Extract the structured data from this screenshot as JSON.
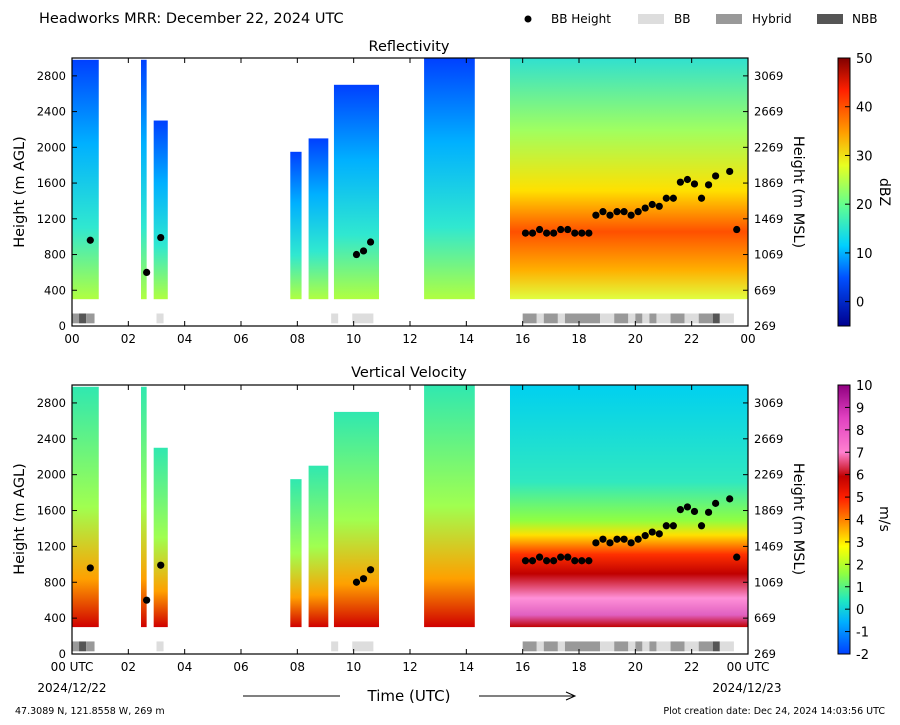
{
  "header": {
    "title": "Headworks MRR:  December 22, 2024 UTC",
    "legend": [
      {
        "label": "BB Height",
        "kind": "dot",
        "color": "#000000"
      },
      {
        "label": "BB",
        "kind": "patch",
        "color": "#dddddd"
      },
      {
        "label": "Hybrid",
        "kind": "patch",
        "color": "#999999"
      },
      {
        "label": "NBB",
        "kind": "patch",
        "color": "#555555"
      }
    ]
  },
  "footer": {
    "xlabel": "Time (UTC)",
    "location": "47.3089 N, 121.8558 W, 269 m",
    "creation": "Plot creation date: Dec 24, 2024 14:03:56 UTC",
    "start_date": "2024/12/22",
    "end_date": "2024/12/23"
  },
  "chart_data": [
    {
      "type": "heatmap",
      "title": "Reflectivity",
      "ylabel": "Height (m AGL)",
      "y2label": "Height (m MSL)",
      "xticks": [
        "00",
        "02",
        "04",
        "06",
        "08",
        "10",
        "12",
        "14",
        "16",
        "18",
        "20",
        "22",
        "00"
      ],
      "yticks": [
        "0",
        "400",
        "800",
        "1200",
        "1600",
        "2000",
        "2400",
        "2800"
      ],
      "y2ticks": [
        "269",
        "669",
        "1069",
        "1469",
        "1869",
        "2269",
        "2669",
        "3069"
      ],
      "xlim": [
        0,
        24
      ],
      "ylim": [
        0,
        3000
      ],
      "colorbar": {
        "label": "dBZ",
        "ticks": [
          "0",
          "10",
          "20",
          "30",
          "40",
          "50"
        ],
        "range": [
          -5,
          50
        ]
      },
      "bb_height_points": [
        [
          0.65,
          960
        ],
        [
          2.65,
          600
        ],
        [
          3.15,
          990
        ],
        [
          10.1,
          800
        ],
        [
          10.35,
          840
        ],
        [
          10.6,
          940
        ],
        [
          16.1,
          1040
        ],
        [
          16.35,
          1040
        ],
        [
          16.6,
          1080
        ],
        [
          16.85,
          1040
        ],
        [
          17.1,
          1040
        ],
        [
          17.35,
          1080
        ],
        [
          17.6,
          1080
        ],
        [
          17.85,
          1040
        ],
        [
          18.1,
          1040
        ],
        [
          18.35,
          1040
        ],
        [
          18.6,
          1240
        ],
        [
          18.85,
          1280
        ],
        [
          19.1,
          1240
        ],
        [
          19.35,
          1280
        ],
        [
          19.6,
          1280
        ],
        [
          19.85,
          1240
        ],
        [
          20.1,
          1280
        ],
        [
          20.35,
          1320
        ],
        [
          20.6,
          1360
        ],
        [
          20.85,
          1340
        ],
        [
          21.1,
          1430
        ],
        [
          21.35,
          1430
        ],
        [
          21.6,
          1610
        ],
        [
          21.85,
          1640
        ],
        [
          22.1,
          1590
        ],
        [
          22.35,
          1430
        ],
        [
          22.6,
          1580
        ],
        [
          22.85,
          1680
        ],
        [
          23.35,
          1730
        ],
        [
          23.6,
          1080
        ]
      ]
    },
    {
      "type": "heatmap",
      "title": "Vertical Velocity",
      "ylabel": "Height (m AGL)",
      "y2label": "Height (m MSL)",
      "xticks": [
        "00 UTC",
        "02",
        "04",
        "06",
        "08",
        "10",
        "12",
        "14",
        "16",
        "18",
        "20",
        "22",
        "00 UTC"
      ],
      "yticks": [
        "0",
        "400",
        "800",
        "1200",
        "1600",
        "2000",
        "2400",
        "2800"
      ],
      "y2ticks": [
        "269",
        "669",
        "1069",
        "1469",
        "1869",
        "2269",
        "2669",
        "3069"
      ],
      "xlim": [
        0,
        24
      ],
      "ylim": [
        0,
        3000
      ],
      "colorbar": {
        "label": "m/s",
        "ticks": [
          "-2",
          "-1",
          "0",
          "1",
          "2",
          "3",
          "4",
          "5",
          "6",
          "7",
          "8",
          "9",
          "10"
        ],
        "range": [
          -2,
          10
        ]
      },
      "bb_height_points": [
        [
          0.65,
          960
        ],
        [
          2.65,
          600
        ],
        [
          3.15,
          990
        ],
        [
          10.1,
          800
        ],
        [
          10.35,
          840
        ],
        [
          10.6,
          940
        ],
        [
          16.1,
          1040
        ],
        [
          16.35,
          1040
        ],
        [
          16.6,
          1080
        ],
        [
          16.85,
          1040
        ],
        [
          17.1,
          1040
        ],
        [
          17.35,
          1080
        ],
        [
          17.6,
          1080
        ],
        [
          17.85,
          1040
        ],
        [
          18.1,
          1040
        ],
        [
          18.35,
          1040
        ],
        [
          18.6,
          1240
        ],
        [
          18.85,
          1280
        ],
        [
          19.1,
          1240
        ],
        [
          19.35,
          1280
        ],
        [
          19.6,
          1280
        ],
        [
          19.85,
          1240
        ],
        [
          20.1,
          1280
        ],
        [
          20.35,
          1320
        ],
        [
          20.6,
          1360
        ],
        [
          20.85,
          1340
        ],
        [
          21.1,
          1430
        ],
        [
          21.35,
          1430
        ],
        [
          21.6,
          1610
        ],
        [
          21.85,
          1640
        ],
        [
          22.1,
          1590
        ],
        [
          22.35,
          1430
        ],
        [
          22.6,
          1580
        ],
        [
          22.85,
          1680
        ],
        [
          23.35,
          1730
        ],
        [
          23.6,
          1080
        ]
      ]
    }
  ],
  "bb_type_segments": [
    {
      "start": 0.0,
      "end": 0.25,
      "type": "Hybrid"
    },
    {
      "start": 0.25,
      "end": 0.5,
      "type": "NBB"
    },
    {
      "start": 0.5,
      "end": 0.8,
      "type": "Hybrid"
    },
    {
      "start": 3.0,
      "end": 3.25,
      "type": "BB"
    },
    {
      "start": 9.2,
      "end": 9.45,
      "type": "BB"
    },
    {
      "start": 9.95,
      "end": 10.7,
      "type": "BB"
    },
    {
      "start": 16.0,
      "end": 16.5,
      "type": "Hybrid"
    },
    {
      "start": 16.5,
      "end": 16.75,
      "type": "BB"
    },
    {
      "start": 16.75,
      "end": 17.25,
      "type": "Hybrid"
    },
    {
      "start": 17.25,
      "end": 17.5,
      "type": "BB"
    },
    {
      "start": 17.5,
      "end": 18.75,
      "type": "Hybrid"
    },
    {
      "start": 18.75,
      "end": 19.25,
      "type": "BB"
    },
    {
      "start": 19.25,
      "end": 19.75,
      "type": "Hybrid"
    },
    {
      "start": 19.75,
      "end": 20.0,
      "type": "BB"
    },
    {
      "start": 20.0,
      "end": 20.25,
      "type": "Hybrid"
    },
    {
      "start": 20.25,
      "end": 20.5,
      "type": "BB"
    },
    {
      "start": 20.5,
      "end": 20.75,
      "type": "Hybrid"
    },
    {
      "start": 20.75,
      "end": 21.25,
      "type": "BB"
    },
    {
      "start": 21.25,
      "end": 21.75,
      "type": "Hybrid"
    },
    {
      "start": 21.75,
      "end": 22.25,
      "type": "BB"
    },
    {
      "start": 22.25,
      "end": 22.75,
      "type": "Hybrid"
    },
    {
      "start": 22.75,
      "end": 23.0,
      "type": "NBB"
    },
    {
      "start": 23.0,
      "end": 23.5,
      "type": "BB"
    }
  ],
  "echo_regions": [
    {
      "start": 0.0,
      "end": 0.95,
      "top": 2980
    },
    {
      "start": 2.45,
      "end": 2.65,
      "top": 2980
    },
    {
      "start": 2.9,
      "end": 3.4,
      "top": 2300
    },
    {
      "start": 7.75,
      "end": 8.15,
      "top": 1950
    },
    {
      "start": 8.4,
      "end": 9.1,
      "top": 2100
    },
    {
      "start": 9.3,
      "end": 10.9,
      "top": 2700
    },
    {
      "start": 12.5,
      "end": 14.3,
      "top": 3000
    },
    {
      "start": 15.55,
      "end": 24.0,
      "top": 3000
    }
  ]
}
